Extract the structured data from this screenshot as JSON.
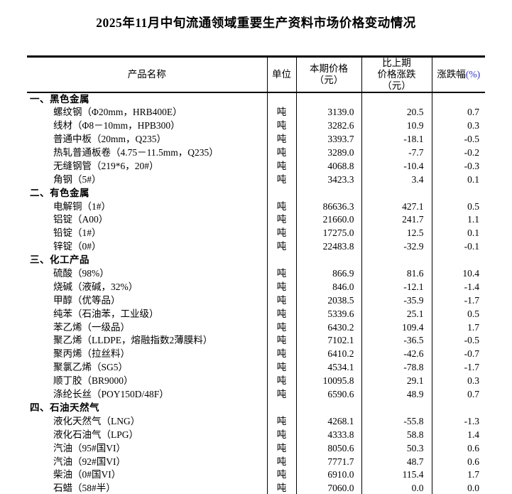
{
  "title": "2025年11月中旬流通领域重要生产资料市场价格变动情况",
  "colors": {
    "pct_suffix_accent": "#3333cc",
    "border": "#000000"
  },
  "table": {
    "headers": {
      "product": "产品名称",
      "unit": "单位",
      "price_lines": [
        "本期价格",
        "（元）"
      ],
      "change_lines": [
        "比上期",
        "价格涨跌",
        "（元）"
      ],
      "pct_label": "涨跌幅",
      "pct_suffix": "(%)"
    },
    "sections": [
      {
        "label": "一、黑色金属",
        "rows": [
          {
            "name": "螺纹钢（Φ20mm，HRB400E）",
            "unit": "吨",
            "price": "3139.0",
            "change": "20.5",
            "pct": "0.7"
          },
          {
            "name": "线材（Φ8－10mm，HPB300）",
            "unit": "吨",
            "price": "3282.6",
            "change": "10.9",
            "pct": "0.3"
          },
          {
            "name": "普通中板（20mm，Q235）",
            "unit": "吨",
            "price": "3393.7",
            "change": "-18.1",
            "pct": "-0.5"
          },
          {
            "name": "热轧普通板卷（4.75－11.5mm，Q235）",
            "unit": "吨",
            "price": "3289.0",
            "change": "-7.7",
            "pct": "-0.2"
          },
          {
            "name": "无缝钢管（219*6，20#）",
            "unit": "吨",
            "price": "4068.8",
            "change": "-10.4",
            "pct": "-0.3"
          },
          {
            "name": "角钢（5#）",
            "unit": "吨",
            "price": "3423.3",
            "change": "3.4",
            "pct": "0.1"
          }
        ]
      },
      {
        "label": "二、有色金属",
        "rows": [
          {
            "name": "电解铜（1#）",
            "unit": "吨",
            "price": "86636.3",
            "change": "427.1",
            "pct": "0.5"
          },
          {
            "name": "铝锭（A00）",
            "unit": "吨",
            "price": "21660.0",
            "change": "241.7",
            "pct": "1.1"
          },
          {
            "name": "铅锭（1#）",
            "unit": "吨",
            "price": "17275.0",
            "change": "12.5",
            "pct": "0.1"
          },
          {
            "name": "锌锭（0#）",
            "unit": "吨",
            "price": "22483.8",
            "change": "-32.9",
            "pct": "-0.1"
          }
        ]
      },
      {
        "label": "三、化工产品",
        "rows": [
          {
            "name": "硫酸（98%）",
            "unit": "吨",
            "price": "866.9",
            "change": "81.6",
            "pct": "10.4"
          },
          {
            "name": "烧碱（液碱，32%）",
            "unit": "吨",
            "price": "846.0",
            "change": "-12.1",
            "pct": "-1.4"
          },
          {
            "name": "甲醇（优等品）",
            "unit": "吨",
            "price": "2038.5",
            "change": "-35.9",
            "pct": "-1.7"
          },
          {
            "name": "纯苯（石油苯，工业级）",
            "unit": "吨",
            "price": "5339.6",
            "change": "25.1",
            "pct": "0.5"
          },
          {
            "name": "苯乙烯（一级品）",
            "unit": "吨",
            "price": "6430.2",
            "change": "109.4",
            "pct": "1.7"
          },
          {
            "name": "聚乙烯（LLDPE，熔融指数2薄膜料）",
            "unit": "吨",
            "price": "7102.1",
            "change": "-36.5",
            "pct": "-0.5"
          },
          {
            "name": "聚丙烯（拉丝料）",
            "unit": "吨",
            "price": "6410.2",
            "change": "-42.6",
            "pct": "-0.7"
          },
          {
            "name": "聚氯乙烯（SG5）",
            "unit": "吨",
            "price": "4534.1",
            "change": "-78.8",
            "pct": "-1.7"
          },
          {
            "name": "顺丁胶（BR9000）",
            "unit": "吨",
            "price": "10095.8",
            "change": "29.1",
            "pct": "0.3"
          },
          {
            "name": "涤纶长丝（POY150D/48F）",
            "unit": "吨",
            "price": "6590.6",
            "change": "48.9",
            "pct": "0.7"
          }
        ]
      },
      {
        "label": "四、石油天然气",
        "rows": [
          {
            "name": "液化天然气（LNG）",
            "unit": "吨",
            "price": "4268.1",
            "change": "-55.8",
            "pct": "-1.3"
          },
          {
            "name": "液化石油气（LPG）",
            "unit": "吨",
            "price": "4333.8",
            "change": "58.8",
            "pct": "1.4"
          },
          {
            "name": "汽油（95#国VI）",
            "unit": "吨",
            "price": "8050.6",
            "change": "50.3",
            "pct": "0.6"
          },
          {
            "name": "汽油（92#国VI）",
            "unit": "吨",
            "price": "7771.7",
            "change": "48.7",
            "pct": "0.6"
          },
          {
            "name": "柴油（0#国VI）",
            "unit": "吨",
            "price": "6910.0",
            "change": "115.4",
            "pct": "1.7"
          },
          {
            "name": "石蜡（58#半）",
            "unit": "吨",
            "price": "7060.0",
            "change": "0.0",
            "pct": "0.0"
          }
        ]
      }
    ]
  }
}
